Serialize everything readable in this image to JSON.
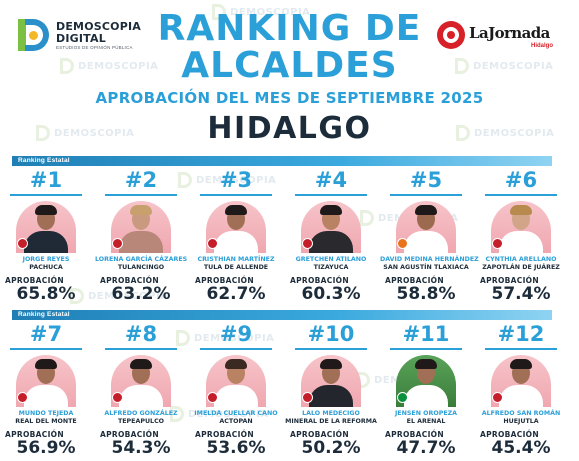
{
  "header": {
    "brand": {
      "line1": "DEMOSCOPIA",
      "line2": "DIGITAL",
      "tagline": "ESTUDIOS DE OPINIÓN PÚBLICA"
    },
    "partner": {
      "name": "LaJornada",
      "edition": "Hidalgo"
    },
    "title_line1": "RANKING DE",
    "title_line2": "ALCALDES",
    "subtitle": "APROBACIÓN DEL MES DE SEPTIEMBRE 2025",
    "state": "HIDALGO"
  },
  "watermark": {
    "line1": "DEMOSCOPIA",
    "line2": "DIGITAL"
  },
  "sections": [
    {
      "band_label": "Ranking Estatal"
    },
    {
      "band_label": "Ranking Estatal"
    }
  ],
  "approval_label": "APROBACIÓN",
  "mayors": [
    {
      "rank": "#1",
      "name": "JORGE REYES",
      "municipality": "PACHUCA",
      "approval": "65.8%",
      "approval_value": 65.8
    },
    {
      "rank": "#2",
      "name": "LORENA GARCÍA CÁZARES",
      "municipality": "TULANCINGO",
      "approval": "63.2%",
      "approval_value": 63.2
    },
    {
      "rank": "#3",
      "name": "CRISTHIAN MARTÍNEZ",
      "municipality": "TULA DE ALLENDE",
      "approval": "62.7%",
      "approval_value": 62.7
    },
    {
      "rank": "#4",
      "name": "GRETCHEN ATILANO",
      "municipality": "TIZAYUCA",
      "approval": "60.3%",
      "approval_value": 60.3
    },
    {
      "rank": "#5",
      "name": "DAVID MEDINA HERNÁNDEZ",
      "municipality": "SAN AGUSTÍN TLAXIACA",
      "approval": "58.8%",
      "approval_value": 58.8
    },
    {
      "rank": "#6",
      "name": "CYNTHIA ARELLANO",
      "municipality": "ZAPOTLÁN DE JUÁREZ",
      "approval": "57.4%",
      "approval_value": 57.4
    },
    {
      "rank": "#7",
      "name": "MUNDO TEJEDA",
      "municipality": "REAL DEL MONTE",
      "approval": "56.9%",
      "approval_value": 56.9
    },
    {
      "rank": "#8",
      "name": "ALFREDO GONZÁLEZ",
      "municipality": "TEPEAPULCO",
      "approval": "54.3%",
      "approval_value": 54.3
    },
    {
      "rank": "#9",
      "name": "IMELDA CUELLAR CANO",
      "municipality": "ACTOPAN",
      "approval": "53.6%",
      "approval_value": 53.6
    },
    {
      "rank": "#10",
      "name": "LALO MEDECIGO",
      "municipality": "MINERAL DE LA REFORMA",
      "approval": "50.2%",
      "approval_value": 50.2
    },
    {
      "rank": "#11",
      "name": "JENSEN OROPEZA",
      "municipality": "EL ARENAL",
      "approval": "47.7%",
      "approval_value": 47.7
    },
    {
      "rank": "#12",
      "name": "ALFREDO SAN ROMÁN",
      "municipality": "HUEJUTLA",
      "approval": "45.4%",
      "approval_value": 45.4
    }
  ],
  "colors": {
    "accent": "#2b9fd8",
    "dark": "#1d2c3a",
    "photo_bg": "#f0a7b0",
    "party_pin": "#c41e2a",
    "partner_red": "#d72027"
  }
}
